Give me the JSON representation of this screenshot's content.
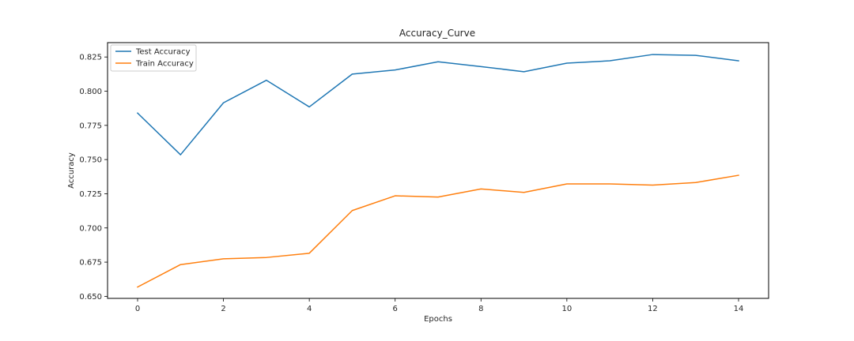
{
  "chart_data": {
    "type": "line",
    "title": "Accuracy_Curve",
    "xlabel": "Epochs",
    "ylabel": "Accuracy",
    "xlim": [
      -0.7,
      14.7
    ],
    "ylim": [
      0.6485,
      0.8355
    ],
    "xticks": [
      0,
      2,
      4,
      6,
      8,
      10,
      12,
      14
    ],
    "xtick_labels": [
      "0",
      "2",
      "4",
      "6",
      "8",
      "10",
      "12",
      "14"
    ],
    "yticks": [
      0.65,
      0.675,
      0.7,
      0.725,
      0.75,
      0.775,
      0.8,
      0.825
    ],
    "ytick_labels": [
      "0.650",
      "0.675",
      "0.700",
      "0.725",
      "0.750",
      "0.775",
      "0.800",
      "0.825"
    ],
    "grid": false,
    "legend_position": "upper-left",
    "x": [
      0,
      1,
      2,
      3,
      4,
      5,
      6,
      7,
      8,
      9,
      10,
      11,
      12,
      13,
      14
    ],
    "series": [
      {
        "name": "Test Accuracy",
        "color": "#1f77b4",
        "values": [
          0.784,
          0.7535,
          0.7915,
          0.808,
          0.7885,
          0.8125,
          0.8155,
          0.8215,
          0.818,
          0.8142,
          0.8205,
          0.8222,
          0.8268,
          0.8262,
          0.8222
        ]
      },
      {
        "name": "Train Accuracy",
        "color": "#ff7f0e",
        "values": [
          0.6568,
          0.6732,
          0.6774,
          0.6784,
          0.6815,
          0.7127,
          0.7235,
          0.7226,
          0.7285,
          0.726,
          0.7322,
          0.7322,
          0.7313,
          0.7332,
          0.7385
        ]
      }
    ]
  }
}
